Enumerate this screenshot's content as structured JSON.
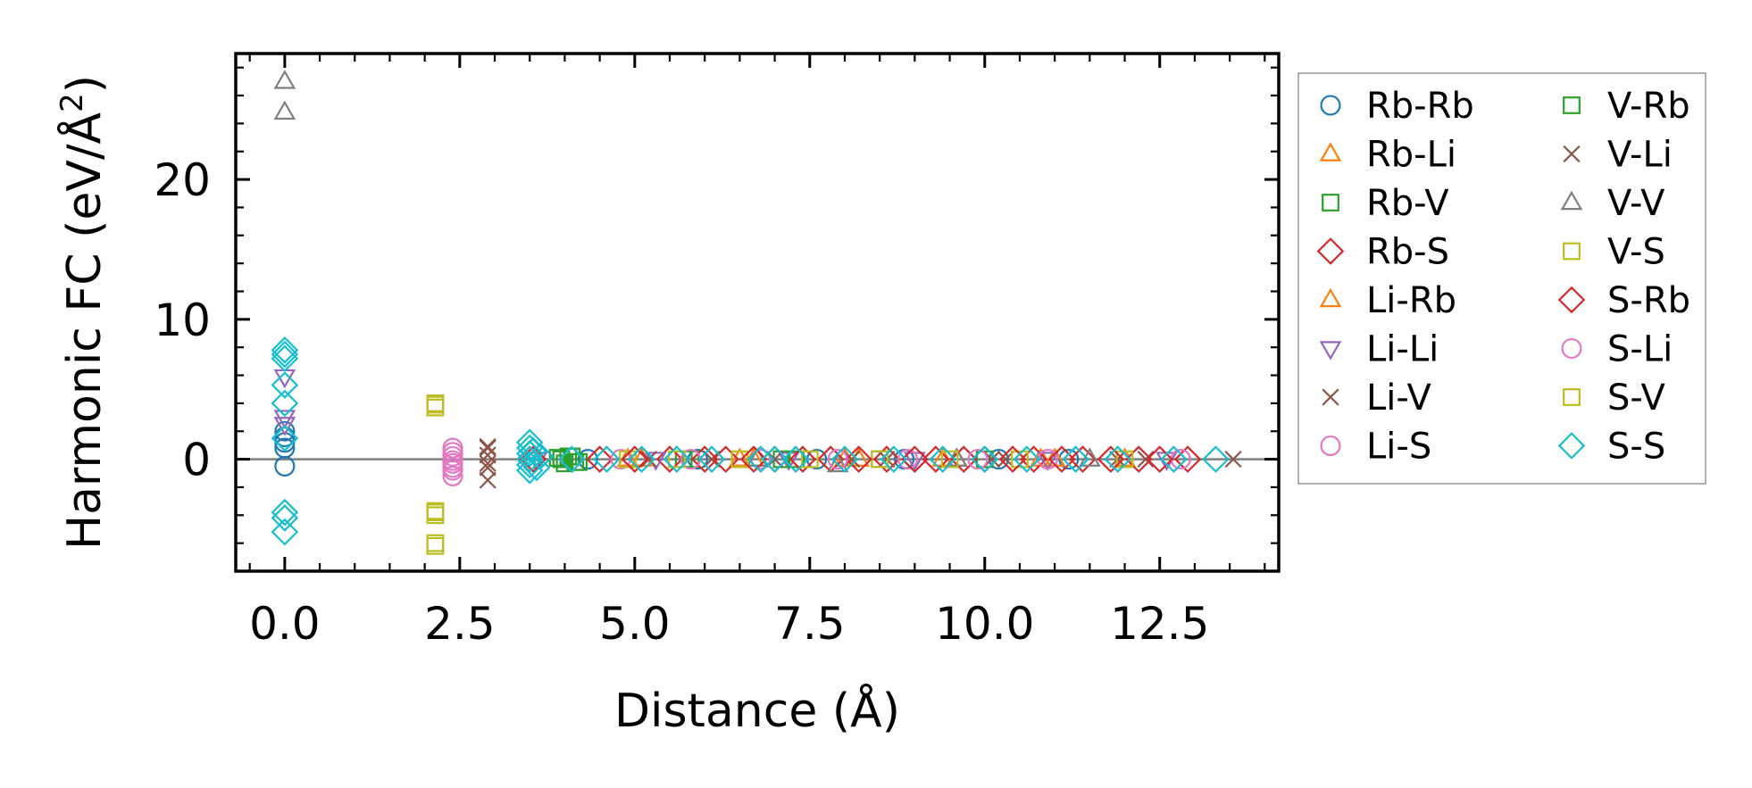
{
  "chart_data": {
    "type": "scatter",
    "xlabel": "Distance (Å)",
    "ylabel": "Harmonic FC (eV/Å²)",
    "ylabel_main": "Harmonic FC (eV/Å",
    "ylabel_sup": "2",
    "ylabel_end": ")",
    "xlim": [
      -0.7,
      14.2
    ],
    "ylim": [
      -8,
      29
    ],
    "xticks": [
      0.0,
      2.5,
      5.0,
      7.5,
      10.0,
      12.5
    ],
    "xtick_labels": [
      "0.0",
      "2.5",
      "5.0",
      "7.5",
      "10.0",
      "12.5"
    ],
    "yticks": [
      0,
      10,
      20
    ],
    "ytick_labels": [
      "0",
      "10",
      "20"
    ],
    "x_minor_step": 0.5,
    "y_minor_step": 2,
    "zero_line": true,
    "legend_position": "outside-right",
    "series": [
      {
        "name": "Rb-Rb",
        "marker": "circle",
        "color": "#1f77b4",
        "x": [
          0,
          0,
          0,
          0,
          0,
          4.33,
          5.9,
          7.6,
          8.85,
          10.2,
          11.2
        ],
        "y": [
          -0.5,
          0.8,
          1.2,
          1.6,
          2.0,
          0.0,
          0.0,
          0.0,
          0.0,
          0.0,
          0.0
        ]
      },
      {
        "name": "Rb-Li",
        "marker": "triangle-up",
        "color": "#ff7f0e",
        "x": [
          4.9,
          6.5,
          8.0,
          9.4,
          10.8,
          12.0
        ],
        "y": [
          0.0,
          0.0,
          0.0,
          0.0,
          0.0,
          0.0
        ]
      },
      {
        "name": "Rb-V",
        "marker": "square",
        "color": "#2ca02c",
        "x": [
          3.9,
          4.0,
          4.1,
          4.2,
          5.7,
          7.1,
          8.5,
          10.0
        ],
        "y": [
          0.1,
          -0.3,
          0.2,
          -0.2,
          0.0,
          0.0,
          0.0,
          0.0
        ]
      },
      {
        "name": "Rb-S",
        "marker": "diamond",
        "color": "#d62728",
        "x": [
          3.5,
          4.5,
          5.5,
          6.3,
          7.0,
          7.8,
          8.6,
          9.3,
          10.0,
          10.7,
          11.4,
          12.2,
          12.9
        ],
        "y": [
          0.0,
          0.0,
          0.0,
          0.0,
          0.0,
          0.0,
          0.0,
          0.0,
          0.0,
          0.0,
          0.0,
          0.0,
          0.0
        ]
      },
      {
        "name": "Li-Rb",
        "marker": "triangle-up",
        "color": "#ff7f0e",
        "x": [
          5.1,
          6.7,
          8.2,
          9.6,
          11.0
        ],
        "y": [
          0.0,
          0.0,
          0.0,
          0.0,
          0.0
        ]
      },
      {
        "name": "Li-Li",
        "marker": "triangle-down",
        "color": "#9467bd",
        "x": [
          0,
          0,
          0,
          3.6,
          5.3,
          7.2,
          9.0,
          10.9,
          12.6
        ],
        "y": [
          2.5,
          5.9,
          3.0,
          0.0,
          0.0,
          0.0,
          0.0,
          0.0,
          0.0
        ]
      },
      {
        "name": "Li-V",
        "marker": "x",
        "color": "#8c564b",
        "x": [
          2.9,
          2.9,
          2.9,
          2.9,
          5.2,
          7.0,
          8.6,
          10.3,
          11.9,
          13.55
        ],
        "y": [
          0.8,
          0.3,
          -0.3,
          -1.5,
          0.0,
          0.0,
          0.0,
          0.0,
          0.0,
          0.0
        ]
      },
      {
        "name": "Li-S",
        "marker": "circle",
        "color": "#e377c2",
        "x": [
          2.4,
          2.4,
          2.4,
          2.4,
          2.4,
          4.8,
          6.8,
          8.9,
          10.9,
          12.8
        ],
        "y": [
          0.8,
          0.2,
          -0.3,
          -0.8,
          -1.2,
          0.0,
          0.0,
          0.0,
          0.0,
          0.0
        ]
      },
      {
        "name": "V-Rb",
        "marker": "square",
        "color": "#2ca02c",
        "x": [
          3.95,
          4.05,
          4.15,
          5.8,
          7.3
        ],
        "y": [
          0.0,
          0.2,
          -0.2,
          0.0,
          0.0
        ]
      },
      {
        "name": "V-Li",
        "marker": "x",
        "color": "#8c564b",
        "x": [
          2.9,
          2.9,
          6.1,
          8.1,
          10.1,
          12.3
        ],
        "y": [
          0.9,
          -0.6,
          0.0,
          0.0,
          0.0,
          0.0
        ]
      },
      {
        "name": "V-V",
        "marker": "triangle-up",
        "color": "#7f7f7f",
        "x": [
          0,
          0,
          6.75,
          7.9,
          9.6,
          11.5
        ],
        "y": [
          27.0,
          24.8,
          0.0,
          -0.4,
          0.0,
          0.0
        ]
      },
      {
        "name": "V-S",
        "marker": "square",
        "color": "#bcbd22",
        "x": [
          2.15,
          2.15,
          2.15,
          2.15,
          2.15,
          4.9,
          6.5,
          8.5,
          10.5,
          12.0
        ],
        "y": [
          4.0,
          3.7,
          -3.7,
          -4.0,
          -6.2,
          0.0,
          0.0,
          0.0,
          0.0,
          0.0
        ]
      },
      {
        "name": "S-Rb",
        "marker": "diamond",
        "color": "#d62728",
        "x": [
          3.55,
          5.0,
          6.0,
          6.7,
          7.4,
          8.2,
          9.0,
          9.7,
          10.4,
          11.1,
          11.8,
          12.5
        ],
        "y": [
          0.0,
          0.0,
          0.0,
          0.0,
          0.0,
          0.0,
          0.0,
          0.0,
          0.0,
          0.0,
          0.0,
          0.0
        ]
      },
      {
        "name": "S-Li",
        "marker": "circle",
        "color": "#e377c2",
        "x": [
          2.4,
          2.4,
          2.4,
          5.8,
          7.9,
          9.9
        ],
        "y": [
          0.5,
          -0.1,
          -0.6,
          0.0,
          0.0,
          0.0
        ]
      },
      {
        "name": "S-V",
        "marker": "square",
        "color": "#bcbd22",
        "x": [
          2.15,
          2.15,
          2.15,
          5.6,
          7.5,
          9.5
        ],
        "y": [
          3.9,
          -3.8,
          -6.0,
          0.0,
          0.0,
          0.0
        ]
      },
      {
        "name": "S-S",
        "marker": "diamond",
        "color": "#17becf",
        "x": [
          0,
          0,
          0,
          0,
          0,
          0,
          0,
          0,
          0,
          3.5,
          3.5,
          3.5,
          3.5,
          3.5,
          3.5,
          3.55,
          3.6,
          3.65,
          4.1,
          4.6,
          5.1,
          5.6,
          6.1,
          6.8,
          7.0,
          7.3,
          8.0,
          8.7,
          9.4,
          10.0,
          10.6,
          11.3,
          11.9,
          12.7,
          13.3
        ],
        "y": [
          7.8,
          7.5,
          7.2,
          5.3,
          4.0,
          1.5,
          -3.8,
          -4.2,
          -5.2,
          1.2,
          0.8,
          0.4,
          0.0,
          -0.4,
          -0.8,
          0.6,
          -0.6,
          0.2,
          0.0,
          0.0,
          0.0,
          0.0,
          0.0,
          0.0,
          0.0,
          0.0,
          0.0,
          0.0,
          0.0,
          0.0,
          0.0,
          0.0,
          0.0,
          0.0,
          0.0
        ]
      }
    ]
  }
}
